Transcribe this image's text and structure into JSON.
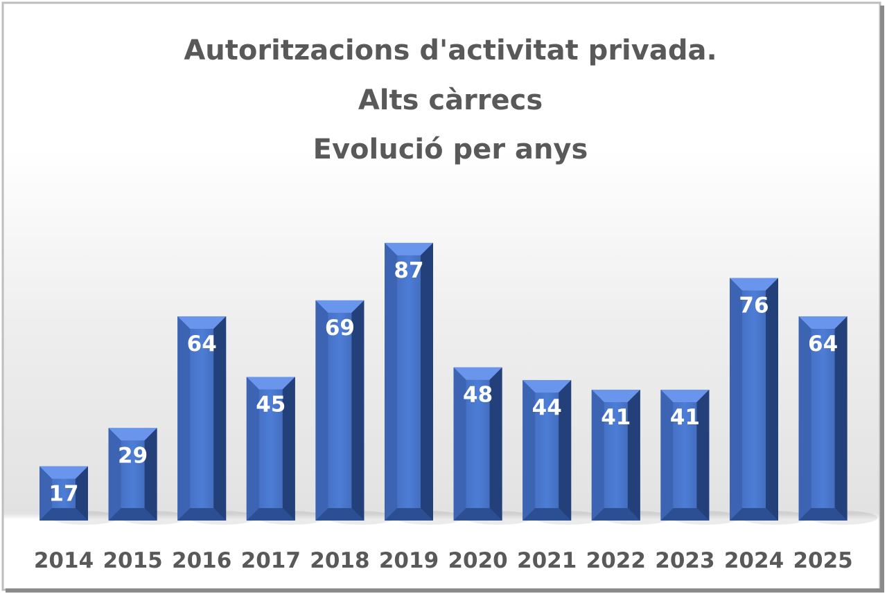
{
  "chart_data": {
    "type": "bar",
    "title": [
      "Autoritzacions d'activitat privada.",
      "Alts càrrecs",
      "Evolució per anys"
    ],
    "categories": [
      "2014",
      "2015",
      "2016",
      "2017",
      "2018",
      "2019",
      "2020",
      "2021",
      "2022",
      "2023",
      "2024",
      "2025"
    ],
    "values": [
      17,
      29,
      64,
      45,
      69,
      87,
      48,
      44,
      41,
      41,
      76,
      64
    ],
    "xlabel": "",
    "ylabel": "",
    "ylim": [
      0,
      95
    ],
    "grid": false,
    "legend": "none",
    "data_labels": true,
    "colors": {
      "bar": "#4472C4",
      "text": "#595959",
      "label": "#FFFFFF"
    }
  }
}
